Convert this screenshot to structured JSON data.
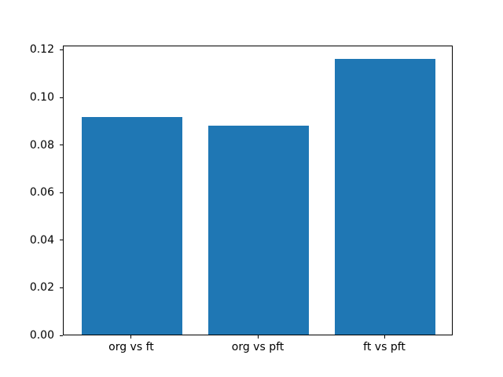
{
  "chart_data": {
    "type": "bar",
    "title": "",
    "xlabel": "",
    "ylabel": "",
    "categories": [
      "org vs ft",
      "org vs pft",
      "ft vs pft"
    ],
    "values": [
      0.0913,
      0.0877,
      0.116
    ],
    "bar_color": "#1f77b4",
    "ylim": [
      0,
      0.1218
    ],
    "ytick_values": [
      0.0,
      0.02,
      0.04,
      0.06,
      0.08,
      0.1,
      0.12
    ],
    "ytick_labels": [
      "0.00",
      "0.02",
      "0.04",
      "0.06",
      "0.08",
      "0.10",
      "0.12"
    ],
    "bar_width_fraction": 0.8,
    "x_units_range": 3.08,
    "grid": false,
    "legend": null,
    "background_color": "#ffffff",
    "spine_color": "#000000"
  }
}
